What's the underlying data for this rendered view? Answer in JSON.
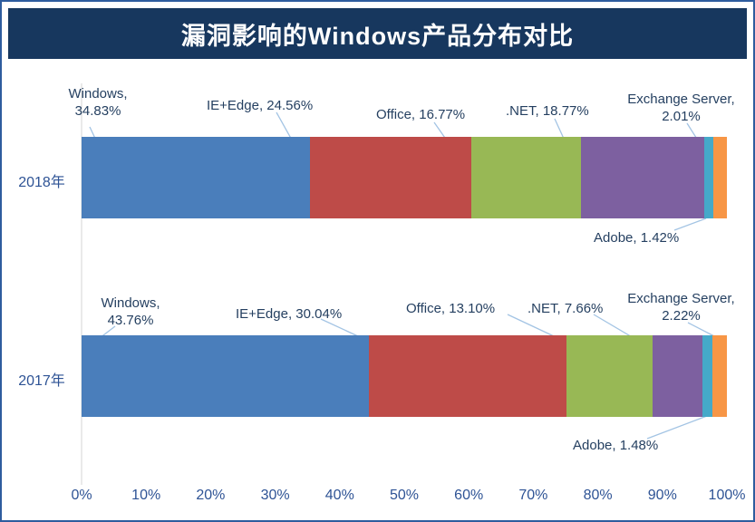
{
  "title": "漏洞影响的Windows产品分布对比",
  "chart_data": {
    "type": "bar",
    "orientation": "horizontal",
    "stacked": true,
    "normalized_to_100": true,
    "title": "漏洞影响的Windows产品分布对比",
    "categories": [
      "2018年",
      "2017年"
    ],
    "series": [
      {
        "name": "Windows",
        "color": "#4A7EBB",
        "values": [
          34.83,
          43.76
        ]
      },
      {
        "name": "IE+Edge",
        "color": "#BE4B48",
        "values": [
          24.56,
          30.04
        ]
      },
      {
        "name": "Office",
        "color": "#98B855",
        "values": [
          16.77,
          13.1
        ]
      },
      {
        "name": ".NET",
        "color": "#7D60A0",
        "values": [
          18.77,
          7.66
        ]
      },
      {
        "name": "Adobe",
        "color": "#45A9C9",
        "values": [
          1.42,
          1.48
        ]
      },
      {
        "name": "Exchange Server",
        "color": "#F79646",
        "values": [
          2.01,
          2.22
        ]
      }
    ],
    "x_axis": {
      "min": 0,
      "max": 100,
      "ticks": [
        "0%",
        "10%",
        "20%",
        "30%",
        "40%",
        "50%",
        "60%",
        "70%",
        "80%",
        "90%",
        "100%"
      ]
    },
    "legend": "none",
    "grid": "off",
    "annotations": {
      "y2018": {
        "windows": "Windows,\n34.83%",
        "ie_edge": "IE+Edge, 24.56%",
        "office": "Office, 16.77%",
        "dotnet": ".NET, 18.77%",
        "exchange": "Exchange Server,\n2.01%",
        "adobe": "Adobe, 1.42%"
      },
      "y2017": {
        "windows": "Windows,\n43.76%",
        "ie_edge": "IE+Edge, 30.04%",
        "office": "Office, 13.10%",
        "dotnet": ".NET, 7.66%",
        "exchange": "Exchange Server,\n2.22%",
        "adobe": "Adobe, 1.48%"
      }
    }
  }
}
